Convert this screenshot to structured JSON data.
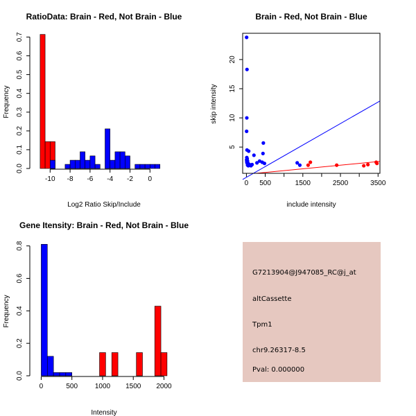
{
  "chart_data": [
    {
      "type": "bar",
      "title": "RatioData: Brain - Red, Not Brain - Blue",
      "xlabel": "Log2 Ratio Skip/Include",
      "ylabel": "Frequency",
      "xlim": [
        -11.2,
        2.2
      ],
      "ylim": [
        0,
        0.72
      ],
      "x_ticks": [
        -10,
        -8,
        -6,
        -4,
        -2,
        0
      ],
      "x_tick_labels": [
        "-10",
        "-8",
        "-6",
        "-4",
        "-2",
        "0"
      ],
      "y_ticks": [
        0.0,
        0.1,
        0.2,
        0.3,
        0.4,
        0.5,
        0.6,
        0.7
      ],
      "y_tick_labels": [
        "0.0",
        "0.1",
        "0.2",
        "0.3",
        "0.4",
        "0.5",
        "0.6",
        "0.7"
      ],
      "series": [
        {
          "name": "Brain",
          "color": "#ff0000",
          "bins": [
            [
              -11,
              -10.5,
              0.714
            ],
            [
              -10.5,
              -10,
              0.143
            ],
            [
              -10,
              -9.5,
              0.143
            ]
          ]
        },
        {
          "name": "Not Brain",
          "color": "#0000ff",
          "bins": [
            [
              -10,
              -9.5,
              0.044
            ],
            [
              -8.5,
              -8,
              0.022
            ],
            [
              -8,
              -7.5,
              0.044
            ],
            [
              -7.5,
              -7,
              0.044
            ],
            [
              -7,
              -6.5,
              0.089
            ],
            [
              -6.5,
              -6,
              0.044
            ],
            [
              -6,
              -5.5,
              0.067
            ],
            [
              -5.5,
              -5,
              0.022
            ],
            [
              -4.5,
              -4,
              0.211
            ],
            [
              -4,
              -3.5,
              0.044
            ],
            [
              -3.5,
              -3,
              0.089
            ],
            [
              -3,
              -2.5,
              0.089
            ],
            [
              -2.5,
              -2,
              0.067
            ],
            [
              -1.5,
              -1,
              0.022
            ],
            [
              -1,
              -0.5,
              0.022
            ],
            [
              -0.5,
              0,
              0.022
            ],
            [
              0,
              0.5,
              0.022
            ],
            [
              0.5,
              1,
              0.022
            ]
          ]
        }
      ]
    },
    {
      "type": "scatter",
      "title": "Brain - Red, Not Brain - Blue",
      "xlabel": "include intensity",
      "ylabel": "skip intensity",
      "xlim": [
        -100,
        3550
      ],
      "ylim": [
        0.5,
        24.5
      ],
      "x_ticks": [
        0,
        500,
        1000,
        1500,
        2000,
        2500,
        3000,
        3500
      ],
      "x_tick_labels": [
        "0",
        "500",
        "",
        "1500",
        "",
        "2500",
        "",
        "3500"
      ],
      "y_ticks": [
        5,
        10,
        15,
        20
      ],
      "y_tick_labels": [
        "5",
        "10",
        "15",
        "20"
      ],
      "series": [
        {
          "name": "Not Brain",
          "color": "#0000ff",
          "points": [
            [
              5,
              23.8
            ],
            [
              15,
              18.3
            ],
            [
              10,
              10.0
            ],
            [
              5,
              7.7
            ],
            [
              15,
              4.5
            ],
            [
              60,
              4.3
            ],
            [
              10,
              3.2
            ],
            [
              20,
              3.0
            ],
            [
              5,
              2.8
            ],
            [
              30,
              2.6
            ],
            [
              10,
              2.5
            ],
            [
              15,
              2.3
            ],
            [
              40,
              2.2
            ],
            [
              60,
              2.1
            ],
            [
              80,
              2.0
            ],
            [
              30,
              1.9
            ],
            [
              50,
              1.8
            ],
            [
              120,
              1.8
            ],
            [
              150,
              2.0
            ],
            [
              200,
              3.6
            ],
            [
              280,
              2.3
            ],
            [
              350,
              2.6
            ],
            [
              420,
              2.4
            ],
            [
              440,
              3.9
            ],
            [
              480,
              2.2
            ],
            [
              450,
              5.7
            ],
            [
              1350,
              2.3
            ],
            [
              1420,
              1.9
            ]
          ],
          "fit_line": [
            [
              -100,
              -0.55
            ],
            [
              3550,
              12.9
            ]
          ]
        },
        {
          "name": "Brain",
          "color": "#ff0000",
          "points": [
            [
              1640,
              1.9
            ],
            [
              1700,
              2.4
            ],
            [
              2400,
              1.9
            ],
            [
              3120,
              1.8
            ],
            [
              3230,
              2.0
            ],
            [
              3450,
              2.4
            ],
            [
              3470,
              2.2
            ]
          ],
          "fit_line": [
            [
              250,
              0.5
            ],
            [
              3550,
              2.55
            ]
          ]
        }
      ]
    },
    {
      "type": "bar",
      "title": "Gene Itensity: Brain - Red, Not Brain - Blue",
      "xlabel": "Intensity",
      "ylabel": "Frequency",
      "xlim": [
        -50,
        2130
      ],
      "ylim": [
        0,
        0.82
      ],
      "x_ticks": [
        0,
        500,
        1000,
        1500,
        2000
      ],
      "x_tick_labels": [
        "0",
        "500",
        "1000",
        "1500",
        "2000"
      ],
      "y_ticks": [
        0.0,
        0.2,
        0.4,
        0.6,
        0.8
      ],
      "y_tick_labels": [
        "0.0",
        "0.2",
        "0.4",
        "0.6",
        "0.8"
      ],
      "series": [
        {
          "name": "Not Brain",
          "color": "#0000ff",
          "bins": [
            [
              0,
              100,
              0.81
            ],
            [
              100,
              200,
              0.12
            ],
            [
              200,
              300,
              0.02
            ],
            [
              300,
              400,
              0.02
            ],
            [
              400,
              500,
              0.02
            ]
          ]
        },
        {
          "name": "Brain",
          "color": "#ff0000",
          "bins": [
            [
              950,
              1050,
              0.143
            ],
            [
              1150,
              1250,
              0.143
            ],
            [
              1550,
              1650,
              0.143
            ],
            [
              1850,
              1950,
              0.429
            ],
            [
              1950,
              2050,
              0.143
            ]
          ]
        }
      ]
    }
  ],
  "info_panel": {
    "background": "#e6c8c0",
    "probe_id": "G7213904@J947085_RC@j_at",
    "event_type": "altCassette",
    "gene": "Tpm1",
    "location": "chr9.26317-8.5",
    "pval": "Pval: 0.000000",
    "pval_color": "#b00000"
  }
}
